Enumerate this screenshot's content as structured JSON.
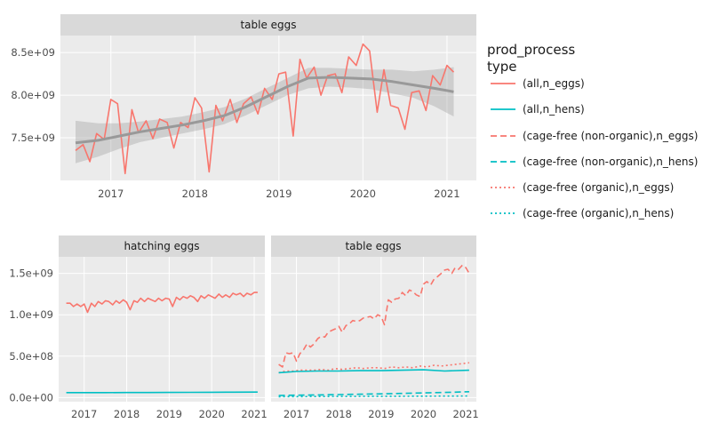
{
  "colors": {
    "eggs": "#F8766D",
    "hens": "#00BFC4",
    "smooth_line": "#999999",
    "smooth_ribbon": "#999999",
    "panel_bg": "#EBEBEB",
    "strip_bg": "#D9D9D9",
    "grid": "#ffffff"
  },
  "legend": {
    "title_line1": "prod_process",
    "title_line2": "type",
    "placement": "right",
    "entries": [
      {
        "label": "(all,n_eggs)",
        "color": "#F8766D",
        "dash": "solid"
      },
      {
        "label": "(all,n_hens)",
        "color": "#00BFC4",
        "dash": "solid"
      },
      {
        "label": "(cage-free (non-organic),n_eggs)",
        "color": "#F8766D",
        "dash": "dash"
      },
      {
        "label": "(cage-free (non-organic),n_hens)",
        "color": "#00BFC4",
        "dash": "dash"
      },
      {
        "label": "(cage-free (organic),n_eggs)",
        "color": "#F8766D",
        "dash": "dot"
      },
      {
        "label": "(cage-free (organic),n_hens)",
        "color": "#00BFC4",
        "dash": "dot"
      }
    ]
  },
  "chart_data": [
    {
      "type": "line",
      "strip_label": "table eggs",
      "x_ticks": [
        "2017",
        "2018",
        "2019",
        "2020",
        "2021"
      ],
      "y_ticks": [
        "7.5e+09",
        "8.0e+09",
        "8.5e+09"
      ],
      "xlim": [
        2016.4,
        2021.35
      ],
      "ylim": [
        7000000000.0,
        8700000000.0
      ],
      "grid": true,
      "series": [
        {
          "name": "(all,n_eggs)",
          "color": "#F8766D",
          "dash": "solid",
          "x": [
            2016.58,
            2016.67,
            2016.75,
            2016.83,
            2016.92,
            2017.0,
            2017.08,
            2017.17,
            2017.25,
            2017.33,
            2017.42,
            2017.5,
            2017.58,
            2017.67,
            2017.75,
            2017.83,
            2017.92,
            2018.0,
            2018.08,
            2018.17,
            2018.25,
            2018.33,
            2018.42,
            2018.5,
            2018.58,
            2018.67,
            2018.75,
            2018.83,
            2018.92,
            2019.0,
            2019.08,
            2019.17,
            2019.25,
            2019.33,
            2019.42,
            2019.5,
            2019.58,
            2019.67,
            2019.75,
            2019.83,
            2019.92,
            2020.0,
            2020.08,
            2020.17,
            2020.25,
            2020.33,
            2020.42,
            2020.5,
            2020.58,
            2020.67,
            2020.75,
            2020.83,
            2020.92,
            2021.0,
            2021.08
          ],
          "y": [
            7350000000.0,
            7420000000.0,
            7220000000.0,
            7550000000.0,
            7480000000.0,
            7950000000.0,
            7900000000.0,
            7080000000.0,
            7830000000.0,
            7560000000.0,
            7700000000.0,
            7490000000.0,
            7720000000.0,
            7680000000.0,
            7380000000.0,
            7680000000.0,
            7620000000.0,
            7970000000.0,
            7850000000.0,
            7100000000.0,
            7880000000.0,
            7700000000.0,
            7950000000.0,
            7680000000.0,
            7900000000.0,
            7980000000.0,
            7780000000.0,
            8080000000.0,
            7950000000.0,
            8250000000.0,
            8270000000.0,
            7520000000.0,
            8420000000.0,
            8200000000.0,
            8330000000.0,
            8000000000.0,
            8230000000.0,
            8250000000.0,
            8030000000.0,
            8450000000.0,
            8350000000.0,
            8600000000.0,
            8520000000.0,
            7800000000.0,
            8300000000.0,
            7880000000.0,
            7850000000.0,
            7600000000.0,
            8030000000.0,
            8050000000.0,
            7820000000.0,
            8230000000.0,
            8120000000.0,
            8350000000.0,
            8270000000.0
          ]
        },
        {
          "name": "smooth",
          "color": "#999999",
          "dash": "solid",
          "smooth": true,
          "x": [
            2016.58,
            2016.85,
            2017.1,
            2017.35,
            2017.6,
            2017.85,
            2018.1,
            2018.35,
            2018.6,
            2018.85,
            2019.1,
            2019.35,
            2019.6,
            2019.85,
            2020.1,
            2020.35,
            2020.6,
            2020.85,
            2021.08
          ],
          "y": [
            7440000000.0,
            7470000000.0,
            7520000000.0,
            7570000000.0,
            7610000000.0,
            7650000000.0,
            7700000000.0,
            7760000000.0,
            7860000000.0,
            7980000000.0,
            8100000000.0,
            8200000000.0,
            8210000000.0,
            8200000000.0,
            8190000000.0,
            8160000000.0,
            8120000000.0,
            8080000000.0,
            8040000000.0
          ],
          "lower": [
            7200000000.0,
            7280000000.0,
            7370000000.0,
            7450000000.0,
            7500000000.0,
            7550000000.0,
            7600000000.0,
            7660000000.0,
            7760000000.0,
            7880000000.0,
            8000000000.0,
            8080000000.0,
            8100000000.0,
            8090000000.0,
            8070000000.0,
            8020000000.0,
            7970000000.0,
            7870000000.0,
            7750000000.0
          ],
          "upper": [
            7700000000.0,
            7670000000.0,
            7670000000.0,
            7690000000.0,
            7720000000.0,
            7750000000.0,
            7800000000.0,
            7860000000.0,
            7960000000.0,
            8080000000.0,
            8200000000.0,
            8320000000.0,
            8320000000.0,
            8310000000.0,
            8300000000.0,
            8300000000.0,
            8280000000.0,
            8300000000.0,
            8330000000.0
          ]
        }
      ]
    },
    {
      "type": "line",
      "strip_label": "hatching eggs",
      "x_ticks": [
        "2017",
        "2018",
        "2019",
        "2020",
        "2021"
      ],
      "y_ticks": [
        "0.0e+00",
        "5.0e+08",
        "1.0e+09",
        "1.5e+09"
      ],
      "xlim": [
        2016.4,
        2021.25
      ],
      "ylim": [
        -50000000.0,
        1700000000.0
      ],
      "grid": true,
      "series": [
        {
          "name": "(all,n_eggs)",
          "color": "#F8766D",
          "dash": "solid",
          "x": [
            2016.58,
            2016.67,
            2016.75,
            2016.83,
            2016.92,
            2017.0,
            2017.08,
            2017.17,
            2017.25,
            2017.33,
            2017.42,
            2017.5,
            2017.58,
            2017.67,
            2017.75,
            2017.83,
            2017.92,
            2018.0,
            2018.08,
            2018.17,
            2018.25,
            2018.33,
            2018.42,
            2018.5,
            2018.58,
            2018.67,
            2018.75,
            2018.83,
            2018.92,
            2019.0,
            2019.08,
            2019.17,
            2019.25,
            2019.33,
            2019.42,
            2019.5,
            2019.58,
            2019.67,
            2019.75,
            2019.83,
            2019.92,
            2020.0,
            2020.08,
            2020.17,
            2020.25,
            2020.33,
            2020.42,
            2020.5,
            2020.58,
            2020.67,
            2020.75,
            2020.83,
            2020.92,
            2021.0,
            2021.08
          ],
          "y": [
            1140000000.0,
            1140000000.0,
            1100000000.0,
            1130000000.0,
            1100000000.0,
            1130000000.0,
            1030000000.0,
            1140000000.0,
            1100000000.0,
            1160000000.0,
            1130000000.0,
            1170000000.0,
            1160000000.0,
            1120000000.0,
            1170000000.0,
            1140000000.0,
            1180000000.0,
            1150000000.0,
            1060000000.0,
            1170000000.0,
            1150000000.0,
            1200000000.0,
            1160000000.0,
            1200000000.0,
            1180000000.0,
            1160000000.0,
            1200000000.0,
            1170000000.0,
            1200000000.0,
            1190000000.0,
            1100000000.0,
            1210000000.0,
            1180000000.0,
            1220000000.0,
            1200000000.0,
            1230000000.0,
            1210000000.0,
            1160000000.0,
            1230000000.0,
            1200000000.0,
            1240000000.0,
            1220000000.0,
            1200000000.0,
            1250000000.0,
            1210000000.0,
            1240000000.0,
            1210000000.0,
            1260000000.0,
            1240000000.0,
            1260000000.0,
            1220000000.0,
            1260000000.0,
            1240000000.0,
            1270000000.0,
            1270000000.0
          ]
        },
        {
          "name": "(all,n_hens)",
          "color": "#00BFC4",
          "dash": "solid",
          "x": [
            2016.58,
            2017.0,
            2017.5,
            2018.0,
            2018.5,
            2019.0,
            2019.5,
            2020.0,
            2020.5,
            2021.08
          ],
          "y": [
            60000000.0,
            60000000.0,
            60000000.0,
            61000000.0,
            61000000.0,
            62000000.0,
            63000000.0,
            64000000.0,
            65000000.0,
            66000000.0
          ]
        }
      ]
    },
    {
      "type": "line",
      "strip_label": "table eggs",
      "x_ticks": [
        "2017",
        "2018",
        "2019",
        "2020",
        "2021"
      ],
      "y_ticks": [
        "0.0e+00",
        "5.0e+08",
        "1.0e+09",
        "1.5e+09"
      ],
      "xlim": [
        2016.4,
        2021.25
      ],
      "ylim": [
        -50000000.0,
        1700000000.0
      ],
      "grid": true,
      "series": [
        {
          "name": "(cage-free (non-organic),n_eggs)",
          "color": "#F8766D",
          "dash": "dash",
          "x": [
            2016.58,
            2016.67,
            2016.75,
            2016.83,
            2016.92,
            2017.0,
            2017.08,
            2017.17,
            2017.25,
            2017.33,
            2017.42,
            2017.5,
            2017.58,
            2017.67,
            2017.75,
            2017.83,
            2017.92,
            2018.0,
            2018.08,
            2018.17,
            2018.25,
            2018.33,
            2018.42,
            2018.5,
            2018.58,
            2018.67,
            2018.75,
            2018.83,
            2018.92,
            2019.0,
            2019.08,
            2019.17,
            2019.25,
            2019.33,
            2019.42,
            2019.5,
            2019.58,
            2019.67,
            2019.75,
            2019.83,
            2019.92,
            2020.0,
            2020.08,
            2020.17,
            2020.25,
            2020.33,
            2020.42,
            2020.5,
            2020.58,
            2020.67,
            2020.75,
            2020.83,
            2020.92,
            2021.0,
            2021.08
          ],
          "y": [
            400000000.0,
            370000000.0,
            540000000.0,
            530000000.0,
            540000000.0,
            440000000.0,
            530000000.0,
            580000000.0,
            650000000.0,
            610000000.0,
            650000000.0,
            710000000.0,
            740000000.0,
            730000000.0,
            790000000.0,
            810000000.0,
            830000000.0,
            860000000.0,
            790000000.0,
            870000000.0,
            890000000.0,
            930000000.0,
            920000000.0,
            930000000.0,
            960000000.0,
            970000000.0,
            980000000.0,
            950000000.0,
            1000000000.0,
            980000000.0,
            880000000.0,
            1180000000.0,
            1150000000.0,
            1190000000.0,
            1200000000.0,
            1270000000.0,
            1230000000.0,
            1300000000.0,
            1280000000.0,
            1240000000.0,
            1220000000.0,
            1370000000.0,
            1400000000.0,
            1360000000.0,
            1430000000.0,
            1460000000.0,
            1500000000.0,
            1540000000.0,
            1550000000.0,
            1500000000.0,
            1570000000.0,
            1550000000.0,
            1600000000.0,
            1570000000.0,
            1500000000.0
          ]
        },
        {
          "name": "(cage-free (organic),n_eggs)",
          "color": "#F8766D",
          "dash": "dot",
          "x": [
            2016.58,
            2016.75,
            2016.92,
            2017.08,
            2017.25,
            2017.42,
            2017.58,
            2017.75,
            2017.92,
            2018.08,
            2018.25,
            2018.42,
            2018.58,
            2018.75,
            2018.92,
            2019.08,
            2019.25,
            2019.42,
            2019.58,
            2019.75,
            2019.92,
            2020.08,
            2020.25,
            2020.42,
            2020.58,
            2020.75,
            2020.92,
            2021.08
          ],
          "y": [
            300000000.0,
            320000000.0,
            320000000.0,
            330000000.0,
            330000000.0,
            330000000.0,
            340000000.0,
            330000000.0,
            350000000.0,
            340000000.0,
            350000000.0,
            360000000.0,
            350000000.0,
            360000000.0,
            360000000.0,
            350000000.0,
            370000000.0,
            360000000.0,
            370000000.0,
            360000000.0,
            380000000.0,
            370000000.0,
            390000000.0,
            380000000.0,
            390000000.0,
            400000000.0,
            410000000.0,
            420000000.0
          ]
        },
        {
          "name": "(all,n_hens)",
          "color": "#00BFC4",
          "dash": "solid",
          "x": [
            2016.58,
            2017.0,
            2017.5,
            2018.0,
            2018.5,
            2019.0,
            2019.5,
            2020.0,
            2020.5,
            2021.08
          ],
          "y": [
            300000000.0,
            315000000.0,
            320000000.0,
            320000000.0,
            325000000.0,
            325000000.0,
            330000000.0,
            335000000.0,
            320000000.0,
            330000000.0
          ]
        },
        {
          "name": "(cage-free (non-organic),n_hens)",
          "color": "#00BFC4",
          "dash": "dash",
          "x": [
            2016.58,
            2017.0,
            2017.5,
            2018.0,
            2018.5,
            2019.0,
            2019.5,
            2020.0,
            2020.5,
            2021.08
          ],
          "y": [
            25000000.0,
            28000000.0,
            32000000.0,
            36000000.0,
            40000000.0,
            45000000.0,
            50000000.0,
            56000000.0,
            62000000.0,
            70000000.0
          ]
        },
        {
          "name": "(cage-free (organic),n_hens)",
          "color": "#00BFC4",
          "dash": "dot",
          "x": [
            2016.58,
            2017.0,
            2017.5,
            2018.0,
            2018.5,
            2019.0,
            2019.5,
            2020.0,
            2020.5,
            2021.08
          ],
          "y": [
            10000000.0,
            11000000.0,
            12000000.0,
            13000000.0,
            14000000.0,
            15000000.0,
            16000000.0,
            17000000.0,
            18000000.0,
            19000000.0
          ]
        }
      ]
    }
  ]
}
